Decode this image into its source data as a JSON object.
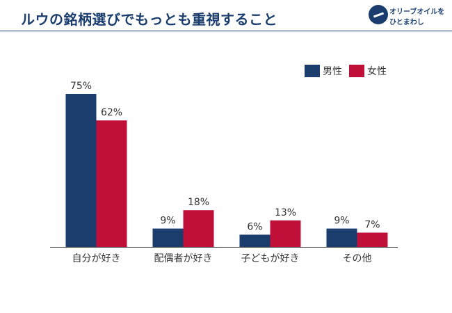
{
  "title": "ルウの銘柄選びでもっとも重視すること",
  "logo": {
    "line1": "オリーブオイルを",
    "line2": "ひとまわし"
  },
  "colors": {
    "male": "#1a3d6e",
    "female": "#c0103a",
    "title": "#1a3d6e",
    "axis": "#444444",
    "text": "#333333"
  },
  "chart_data": {
    "type": "bar",
    "title": "ルウの銘柄選びでもっとも重視すること",
    "categories": [
      "自分が好き",
      "配偶者が好き",
      "子どもが好き",
      "その他"
    ],
    "series": [
      {
        "name": "男性",
        "values": [
          75,
          9,
          6,
          9
        ]
      },
      {
        "name": "女性",
        "values": [
          62,
          18,
          13,
          7
        ]
      }
    ],
    "value_suffix": "%",
    "ylim": [
      0,
      80
    ],
    "grid": false,
    "legend": "top-right"
  }
}
